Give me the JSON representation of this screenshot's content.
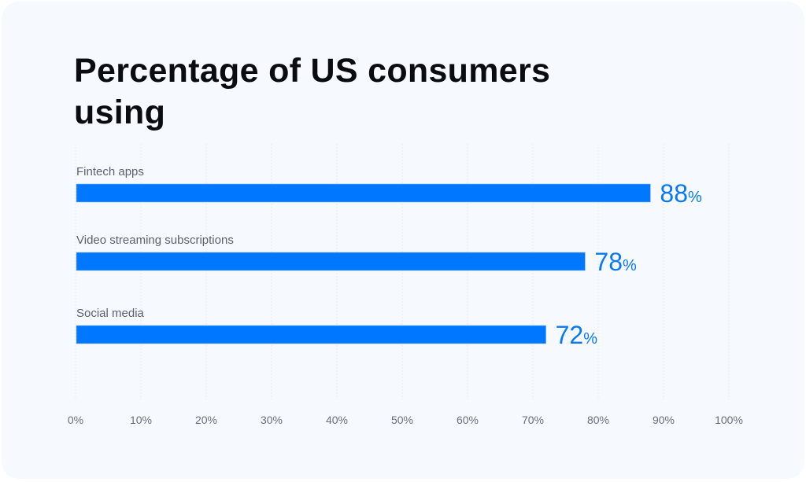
{
  "chart_data": {
    "type": "bar",
    "orientation": "horizontal",
    "title": "Percentage of US consumers using",
    "categories": [
      "Fintech apps",
      "Video streaming subscriptions",
      "Social media"
    ],
    "values": [
      88,
      78,
      72
    ],
    "value_suffix": "%",
    "xlim": [
      0,
      100
    ],
    "x_ticks": [
      "0%",
      "10%",
      "20%",
      "30%",
      "40%",
      "50%",
      "60%",
      "70%",
      "80%",
      "90%",
      "100%"
    ],
    "grid": "vertical",
    "colors": {
      "bar": "#0077ff",
      "value_label": "#0a78f5",
      "background": "#f6faff"
    }
  }
}
